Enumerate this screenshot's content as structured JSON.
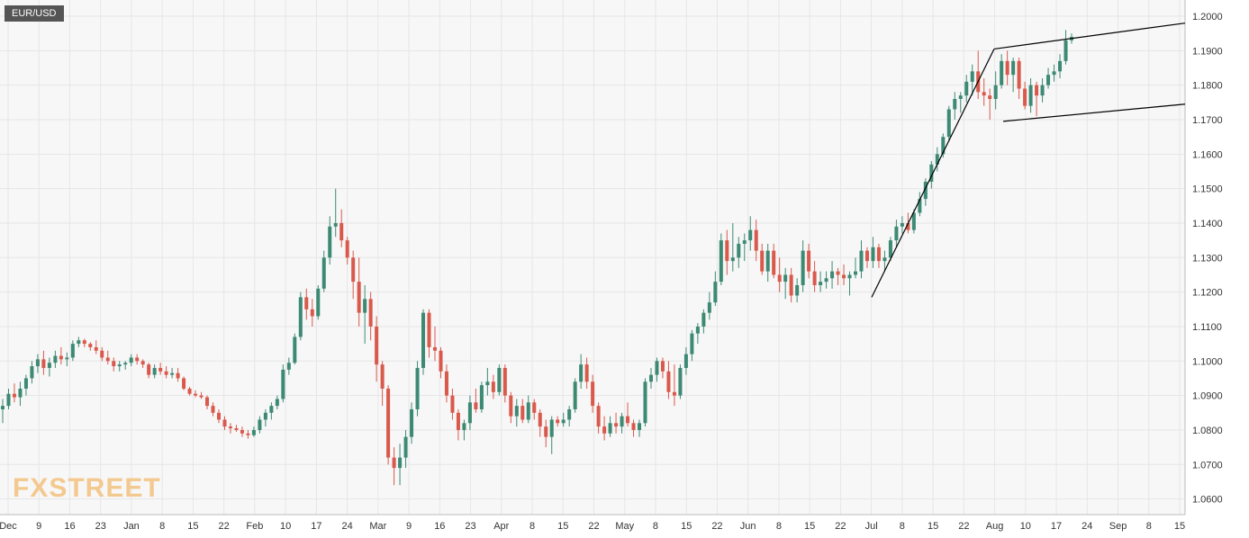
{
  "chart_data": {
    "type": "candlestick",
    "symbol": "EUR/USD",
    "ylim": [
      1.058,
      1.2
    ],
    "x_axis_labels": [
      "Dec",
      "9",
      "16",
      "23",
      "Jan",
      "8",
      "15",
      "22",
      "Feb",
      "10",
      "17",
      "24",
      "Mar",
      "9",
      "16",
      "23",
      "Apr",
      "8",
      "15",
      "22",
      "May",
      "8",
      "15",
      "22",
      "Jun",
      "8",
      "15",
      "22",
      "Jul",
      "8",
      "15",
      "22",
      "Aug",
      "10",
      "17",
      "24",
      "Sep",
      "8",
      "15"
    ],
    "y_ticks": [
      "1.2000",
      "1.1900",
      "1.1800",
      "1.1700",
      "1.1600",
      "1.1500",
      "1.1400",
      "1.1300",
      "1.1200",
      "1.1100",
      "1.1000",
      "1.0900",
      "1.0800",
      "1.0700",
      "1.0600"
    ],
    "grid": true,
    "colors": {
      "up": "#3d8a74",
      "down": "#d9594c",
      "grid": "#e6e6e6",
      "trendline": "#000000"
    },
    "pole_trendline": [
      [
        "Jul 1",
        1.1185
      ],
      [
        "Jul 31",
        1.1905
      ]
    ],
    "channel_upper_trendline": [
      [
        "Jul 31",
        1.1905
      ],
      [
        "Sep 17",
        1.198
      ]
    ],
    "channel_lower_trendline": [
      [
        "Aug 3",
        1.1695
      ],
      [
        "Sep 17",
        1.1745
      ]
    ],
    "candles": [
      {
        "o": 1.086,
        "h": 1.089,
        "l": 1.082,
        "c": 1.087
      },
      {
        "o": 1.087,
        "h": 1.092,
        "l": 1.086,
        "c": 1.0905
      },
      {
        "o": 1.0905,
        "h": 1.0935,
        "l": 1.088,
        "c": 1.0895
      },
      {
        "o": 1.0895,
        "h": 1.094,
        "l": 1.087,
        "c": 1.092
      },
      {
        "o": 1.092,
        "h": 1.096,
        "l": 1.09,
        "c": 1.095
      },
      {
        "o": 1.095,
        "h": 1.1,
        "l": 1.0935,
        "c": 1.0985
      },
      {
        "o": 1.0985,
        "h": 1.102,
        "l": 1.0965,
        "c": 1.1005
      },
      {
        "o": 1.1005,
        "h": 1.103,
        "l": 1.096,
        "c": 1.098
      },
      {
        "o": 1.098,
        "h": 1.101,
        "l": 1.0955,
        "c": 1.0995
      },
      {
        "o": 1.0995,
        "h": 1.103,
        "l": 1.098,
        "c": 1.1015
      },
      {
        "o": 1.1015,
        "h": 1.104,
        "l": 1.099,
        "c": 1.1005
      },
      {
        "o": 1.1005,
        "h": 1.1025,
        "l": 1.0985,
        "c": 1.101
      },
      {
        "o": 1.101,
        "h": 1.106,
        "l": 1.1,
        "c": 1.105
      },
      {
        "o": 1.105,
        "h": 1.107,
        "l": 1.104,
        "c": 1.106
      },
      {
        "o": 1.106,
        "h": 1.1065,
        "l": 1.104,
        "c": 1.105
      },
      {
        "o": 1.105,
        "h": 1.1055,
        "l": 1.103,
        "c": 1.104
      },
      {
        "o": 1.104,
        "h": 1.106,
        "l": 1.102,
        "c": 1.103
      },
      {
        "o": 1.103,
        "h": 1.104,
        "l": 1.1,
        "c": 1.101
      },
      {
        "o": 1.101,
        "h": 1.103,
        "l": 1.099,
        "c": 1.1
      },
      {
        "o": 1.1,
        "h": 1.101,
        "l": 1.097,
        "c": 1.0985
      },
      {
        "o": 1.0985,
        "h": 1.1,
        "l": 1.097,
        "c": 1.099
      },
      {
        "o": 1.099,
        "h": 1.1,
        "l": 1.0975,
        "c": 1.0995
      },
      {
        "o": 1.0995,
        "h": 1.102,
        "l": 1.0985,
        "c": 1.101
      },
      {
        "o": 1.101,
        "h": 1.102,
        "l": 1.099,
        "c": 1.1
      },
      {
        "o": 1.1,
        "h": 1.1005,
        "l": 1.098,
        "c": 1.099
      },
      {
        "o": 1.099,
        "h": 1.0995,
        "l": 1.095,
        "c": 1.096
      },
      {
        "o": 1.096,
        "h": 1.099,
        "l": 1.095,
        "c": 1.098
      },
      {
        "o": 1.098,
        "h": 1.0995,
        "l": 1.096,
        "c": 1.097
      },
      {
        "o": 1.097,
        "h": 1.0985,
        "l": 1.095,
        "c": 1.096
      },
      {
        "o": 1.096,
        "h": 1.098,
        "l": 1.095,
        "c": 1.0965
      },
      {
        "o": 1.0965,
        "h": 1.098,
        "l": 1.094,
        "c": 1.095
      },
      {
        "o": 1.095,
        "h": 1.0955,
        "l": 1.0915,
        "c": 1.092
      },
      {
        "o": 1.092,
        "h": 1.0925,
        "l": 1.09,
        "c": 1.0905
      },
      {
        "o": 1.0905,
        "h": 1.0915,
        "l": 1.0895,
        "c": 1.09
      },
      {
        "o": 1.09,
        "h": 1.091,
        "l": 1.089,
        "c": 1.0895
      },
      {
        "o": 1.0895,
        "h": 1.09,
        "l": 1.086,
        "c": 1.087
      },
      {
        "o": 1.087,
        "h": 1.088,
        "l": 1.084,
        "c": 1.085
      },
      {
        "o": 1.085,
        "h": 1.086,
        "l": 1.082,
        "c": 1.083
      },
      {
        "o": 1.083,
        "h": 1.084,
        "l": 1.08,
        "c": 1.081
      },
      {
        "o": 1.081,
        "h": 1.082,
        "l": 1.079,
        "c": 1.0805
      },
      {
        "o": 1.0805,
        "h": 1.0815,
        "l": 1.0795,
        "c": 1.08
      },
      {
        "o": 1.08,
        "h": 1.081,
        "l": 1.078,
        "c": 1.079
      },
      {
        "o": 1.079,
        "h": 1.08,
        "l": 1.0775,
        "c": 1.0785
      },
      {
        "o": 1.0785,
        "h": 1.081,
        "l": 1.078,
        "c": 1.08
      },
      {
        "o": 1.08,
        "h": 1.084,
        "l": 1.079,
        "c": 1.083
      },
      {
        "o": 1.083,
        "h": 1.086,
        "l": 1.081,
        "c": 1.085
      },
      {
        "o": 1.085,
        "h": 1.088,
        "l": 1.083,
        "c": 1.087
      },
      {
        "o": 1.087,
        "h": 1.09,
        "l": 1.086,
        "c": 1.089
      },
      {
        "o": 1.089,
        "h": 1.099,
        "l": 1.088,
        "c": 1.0975
      },
      {
        "o": 1.0975,
        "h": 1.101,
        "l": 1.096,
        "c": 1.0995
      },
      {
        "o": 1.0995,
        "h": 1.108,
        "l": 1.099,
        "c": 1.107
      },
      {
        "o": 1.107,
        "h": 1.12,
        "l": 1.106,
        "c": 1.1185
      },
      {
        "o": 1.1185,
        "h": 1.121,
        "l": 1.112,
        "c": 1.115
      },
      {
        "o": 1.115,
        "h": 1.118,
        "l": 1.11,
        "c": 1.113
      },
      {
        "o": 1.113,
        "h": 1.122,
        "l": 1.112,
        "c": 1.121
      },
      {
        "o": 1.121,
        "h": 1.132,
        "l": 1.12,
        "c": 1.13
      },
      {
        "o": 1.13,
        "h": 1.142,
        "l": 1.128,
        "c": 1.139
      },
      {
        "o": 1.139,
        "h": 1.15,
        "l": 1.136,
        "c": 1.14
      },
      {
        "o": 1.14,
        "h": 1.144,
        "l": 1.133,
        "c": 1.135
      },
      {
        "o": 1.135,
        "h": 1.136,
        "l": 1.128,
        "c": 1.13
      },
      {
        "o": 1.13,
        "h": 1.132,
        "l": 1.118,
        "c": 1.123
      },
      {
        "o": 1.123,
        "h": 1.13,
        "l": 1.11,
        "c": 1.114
      },
      {
        "o": 1.114,
        "h": 1.122,
        "l": 1.105,
        "c": 1.118
      },
      {
        "o": 1.118,
        "h": 1.12,
        "l": 1.106,
        "c": 1.11
      },
      {
        "o": 1.11,
        "h": 1.113,
        "l": 1.094,
        "c": 1.099
      },
      {
        "o": 1.099,
        "h": 1.1,
        "l": 1.087,
        "c": 1.092
      },
      {
        "o": 1.092,
        "h": 1.093,
        "l": 1.07,
        "c": 1.072
      },
      {
        "o": 1.072,
        "h": 1.075,
        "l": 1.064,
        "c": 1.069
      },
      {
        "o": 1.069,
        "h": 1.076,
        "l": 1.064,
        "c": 1.072
      },
      {
        "o": 1.072,
        "h": 1.08,
        "l": 1.069,
        "c": 1.078
      },
      {
        "o": 1.078,
        "h": 1.088,
        "l": 1.076,
        "c": 1.086
      },
      {
        "o": 1.086,
        "h": 1.1,
        "l": 1.084,
        "c": 1.098
      },
      {
        "o": 1.098,
        "h": 1.115,
        "l": 1.096,
        "c": 1.114
      },
      {
        "o": 1.114,
        "h": 1.115,
        "l": 1.101,
        "c": 1.104
      },
      {
        "o": 1.104,
        "h": 1.11,
        "l": 1.1,
        "c": 1.103
      },
      {
        "o": 1.103,
        "h": 1.104,
        "l": 1.095,
        "c": 1.097
      },
      {
        "o": 1.097,
        "h": 1.099,
        "l": 1.088,
        "c": 1.09
      },
      {
        "o": 1.09,
        "h": 1.092,
        "l": 1.083,
        "c": 1.085
      },
      {
        "o": 1.085,
        "h": 1.086,
        "l": 1.077,
        "c": 1.08
      },
      {
        "o": 1.08,
        "h": 1.083,
        "l": 1.077,
        "c": 1.082
      },
      {
        "o": 1.082,
        "h": 1.09,
        "l": 1.08,
        "c": 1.088
      },
      {
        "o": 1.088,
        "h": 1.092,
        "l": 1.085,
        "c": 1.086
      },
      {
        "o": 1.086,
        "h": 1.094,
        "l": 1.085,
        "c": 1.093
      },
      {
        "o": 1.093,
        "h": 1.098,
        "l": 1.09,
        "c": 1.094
      },
      {
        "o": 1.094,
        "h": 1.096,
        "l": 1.089,
        "c": 1.091
      },
      {
        "o": 1.091,
        "h": 1.099,
        "l": 1.09,
        "c": 1.098
      },
      {
        "o": 1.098,
        "h": 1.099,
        "l": 1.088,
        "c": 1.09
      },
      {
        "o": 1.09,
        "h": 1.091,
        "l": 1.082,
        "c": 1.084
      },
      {
        "o": 1.084,
        "h": 1.089,
        "l": 1.081,
        "c": 1.087
      },
      {
        "o": 1.087,
        "h": 1.089,
        "l": 1.082,
        "c": 1.083
      },
      {
        "o": 1.083,
        "h": 1.09,
        "l": 1.082,
        "c": 1.088
      },
      {
        "o": 1.088,
        "h": 1.089,
        "l": 1.083,
        "c": 1.085
      },
      {
        "o": 1.085,
        "h": 1.086,
        "l": 1.078,
        "c": 1.081
      },
      {
        "o": 1.081,
        "h": 1.083,
        "l": 1.075,
        "c": 1.078
      },
      {
        "o": 1.078,
        "h": 1.084,
        "l": 1.073,
        "c": 1.083
      },
      {
        "o": 1.083,
        "h": 1.084,
        "l": 1.081,
        "c": 1.082
      },
      {
        "o": 1.082,
        "h": 1.085,
        "l": 1.081,
        "c": 1.083
      },
      {
        "o": 1.083,
        "h": 1.087,
        "l": 1.081,
        "c": 1.086
      },
      {
        "o": 1.086,
        "h": 1.095,
        "l": 1.085,
        "c": 1.094
      },
      {
        "o": 1.094,
        "h": 1.102,
        "l": 1.092,
        "c": 1.099
      },
      {
        "o": 1.099,
        "h": 1.101,
        "l": 1.092,
        "c": 1.094
      },
      {
        "o": 1.094,
        "h": 1.096,
        "l": 1.085,
        "c": 1.087
      },
      {
        "o": 1.087,
        "h": 1.088,
        "l": 1.079,
        "c": 1.081
      },
      {
        "o": 1.081,
        "h": 1.084,
        "l": 1.077,
        "c": 1.079
      },
      {
        "o": 1.079,
        "h": 1.084,
        "l": 1.078,
        "c": 1.082
      },
      {
        "o": 1.082,
        "h": 1.085,
        "l": 1.079,
        "c": 1.081
      },
      {
        "o": 1.081,
        "h": 1.085,
        "l": 1.079,
        "c": 1.084
      },
      {
        "o": 1.084,
        "h": 1.088,
        "l": 1.081,
        "c": 1.082
      },
      {
        "o": 1.082,
        "h": 1.083,
        "l": 1.078,
        "c": 1.08
      },
      {
        "o": 1.08,
        "h": 1.083,
        "l": 1.078,
        "c": 1.082
      },
      {
        "o": 1.082,
        "h": 1.095,
        "l": 1.081,
        "c": 1.094
      },
      {
        "o": 1.094,
        "h": 1.098,
        "l": 1.092,
        "c": 1.096
      },
      {
        "o": 1.096,
        "h": 1.101,
        "l": 1.094,
        "c": 1.1
      },
      {
        "o": 1.1,
        "h": 1.101,
        "l": 1.095,
        "c": 1.097
      },
      {
        "o": 1.097,
        "h": 1.1,
        "l": 1.089,
        "c": 1.091
      },
      {
        "o": 1.091,
        "h": 1.099,
        "l": 1.087,
        "c": 1.09
      },
      {
        "o": 1.09,
        "h": 1.099,
        "l": 1.089,
        "c": 1.098
      },
      {
        "o": 1.098,
        "h": 1.104,
        "l": 1.096,
        "c": 1.102
      },
      {
        "o": 1.102,
        "h": 1.109,
        "l": 1.1,
        "c": 1.108
      },
      {
        "o": 1.108,
        "h": 1.111,
        "l": 1.105,
        "c": 1.11
      },
      {
        "o": 1.11,
        "h": 1.115,
        "l": 1.108,
        "c": 1.114
      },
      {
        "o": 1.114,
        "h": 1.12,
        "l": 1.112,
        "c": 1.117
      },
      {
        "o": 1.117,
        "h": 1.126,
        "l": 1.116,
        "c": 1.123
      },
      {
        "o": 1.123,
        "h": 1.137,
        "l": 1.122,
        "c": 1.135
      },
      {
        "o": 1.135,
        "h": 1.138,
        "l": 1.125,
        "c": 1.129
      },
      {
        "o": 1.129,
        "h": 1.14,
        "l": 1.126,
        "c": 1.13
      },
      {
        "o": 1.13,
        "h": 1.136,
        "l": 1.127,
        "c": 1.134
      },
      {
        "o": 1.134,
        "h": 1.137,
        "l": 1.129,
        "c": 1.135
      },
      {
        "o": 1.135,
        "h": 1.142,
        "l": 1.132,
        "c": 1.138
      },
      {
        "o": 1.138,
        "h": 1.141,
        "l": 1.129,
        "c": 1.132
      },
      {
        "o": 1.132,
        "h": 1.134,
        "l": 1.125,
        "c": 1.126
      },
      {
        "o": 1.126,
        "h": 1.134,
        "l": 1.123,
        "c": 1.132
      },
      {
        "o": 1.132,
        "h": 1.134,
        "l": 1.124,
        "c": 1.125
      },
      {
        "o": 1.125,
        "h": 1.13,
        "l": 1.12,
        "c": 1.123
      },
      {
        "o": 1.123,
        "h": 1.127,
        "l": 1.118,
        "c": 1.125
      },
      {
        "o": 1.125,
        "h": 1.127,
        "l": 1.117,
        "c": 1.119
      },
      {
        "o": 1.119,
        "h": 1.124,
        "l": 1.117,
        "c": 1.122
      },
      {
        "o": 1.122,
        "h": 1.135,
        "l": 1.12,
        "c": 1.132
      },
      {
        "o": 1.132,
        "h": 1.134,
        "l": 1.124,
        "c": 1.126
      },
      {
        "o": 1.126,
        "h": 1.129,
        "l": 1.12,
        "c": 1.122
      },
      {
        "o": 1.122,
        "h": 1.126,
        "l": 1.12,
        "c": 1.123
      },
      {
        "o": 1.123,
        "h": 1.126,
        "l": 1.121,
        "c": 1.124
      },
      {
        "o": 1.124,
        "h": 1.129,
        "l": 1.121,
        "c": 1.126
      },
      {
        "o": 1.126,
        "h": 1.127,
        "l": 1.122,
        "c": 1.125
      },
      {
        "o": 1.125,
        "h": 1.128,
        "l": 1.122,
        "c": 1.124
      },
      {
        "o": 1.124,
        "h": 1.126,
        "l": 1.119,
        "c": 1.125
      },
      {
        "o": 1.125,
        "h": 1.13,
        "l": 1.124,
        "c": 1.126
      },
      {
        "o": 1.126,
        "h": 1.135,
        "l": 1.124,
        "c": 1.132
      },
      {
        "o": 1.132,
        "h": 1.133,
        "l": 1.127,
        "c": 1.129
      },
      {
        "o": 1.129,
        "h": 1.136,
        "l": 1.127,
        "c": 1.133
      },
      {
        "o": 1.133,
        "h": 1.134,
        "l": 1.127,
        "c": 1.129
      },
      {
        "o": 1.129,
        "h": 1.132,
        "l": 1.126,
        "c": 1.13
      },
      {
        "o": 1.13,
        "h": 1.136,
        "l": 1.129,
        "c": 1.135
      },
      {
        "o": 1.135,
        "h": 1.141,
        "l": 1.133,
        "c": 1.139
      },
      {
        "o": 1.139,
        "h": 1.142,
        "l": 1.137,
        "c": 1.14
      },
      {
        "o": 1.14,
        "h": 1.143,
        "l": 1.137,
        "c": 1.138
      },
      {
        "o": 1.138,
        "h": 1.144,
        "l": 1.137,
        "c": 1.143
      },
      {
        "o": 1.143,
        "h": 1.149,
        "l": 1.142,
        "c": 1.147
      },
      {
        "o": 1.147,
        "h": 1.153,
        "l": 1.145,
        "c": 1.152
      },
      {
        "o": 1.152,
        "h": 1.158,
        "l": 1.15,
        "c": 1.157
      },
      {
        "o": 1.157,
        "h": 1.162,
        "l": 1.155,
        "c": 1.16
      },
      {
        "o": 1.16,
        "h": 1.166,
        "l": 1.159,
        "c": 1.165
      },
      {
        "o": 1.165,
        "h": 1.174,
        "l": 1.164,
        "c": 1.173
      },
      {
        "o": 1.173,
        "h": 1.178,
        "l": 1.17,
        "c": 1.176
      },
      {
        "o": 1.176,
        "h": 1.178,
        "l": 1.172,
        "c": 1.177
      },
      {
        "o": 1.177,
        "h": 1.183,
        "l": 1.175,
        "c": 1.181
      },
      {
        "o": 1.181,
        "h": 1.186,
        "l": 1.177,
        "c": 1.184
      },
      {
        "o": 1.184,
        "h": 1.19,
        "l": 1.176,
        "c": 1.178
      },
      {
        "o": 1.178,
        "h": 1.182,
        "l": 1.174,
        "c": 1.177
      },
      {
        "o": 1.177,
        "h": 1.179,
        "l": 1.17,
        "c": 1.176
      },
      {
        "o": 1.176,
        "h": 1.184,
        "l": 1.173,
        "c": 1.18
      },
      {
        "o": 1.18,
        "h": 1.189,
        "l": 1.179,
        "c": 1.187
      },
      {
        "o": 1.187,
        "h": 1.19,
        "l": 1.18,
        "c": 1.183
      },
      {
        "o": 1.183,
        "h": 1.188,
        "l": 1.178,
        "c": 1.187
      },
      {
        "o": 1.187,
        "h": 1.188,
        "l": 1.176,
        "c": 1.179
      },
      {
        "o": 1.179,
        "h": 1.181,
        "l": 1.173,
        "c": 1.174
      },
      {
        "o": 1.174,
        "h": 1.182,
        "l": 1.172,
        "c": 1.18
      },
      {
        "o": 1.18,
        "h": 1.181,
        "l": 1.171,
        "c": 1.177
      },
      {
        "o": 1.177,
        "h": 1.182,
        "l": 1.175,
        "c": 1.18
      },
      {
        "o": 1.18,
        "h": 1.185,
        "l": 1.179,
        "c": 1.183
      },
      {
        "o": 1.183,
        "h": 1.186,
        "l": 1.181,
        "c": 1.184
      },
      {
        "o": 1.184,
        "h": 1.189,
        "l": 1.182,
        "c": 1.187
      },
      {
        "o": 1.187,
        "h": 1.196,
        "l": 1.186,
        "c": 1.193
      },
      {
        "o": 1.193,
        "h": 1.195,
        "l": 1.192,
        "c": 1.194
      }
    ]
  },
  "badge": "EUR/USD",
  "watermark": "FXSTREET"
}
